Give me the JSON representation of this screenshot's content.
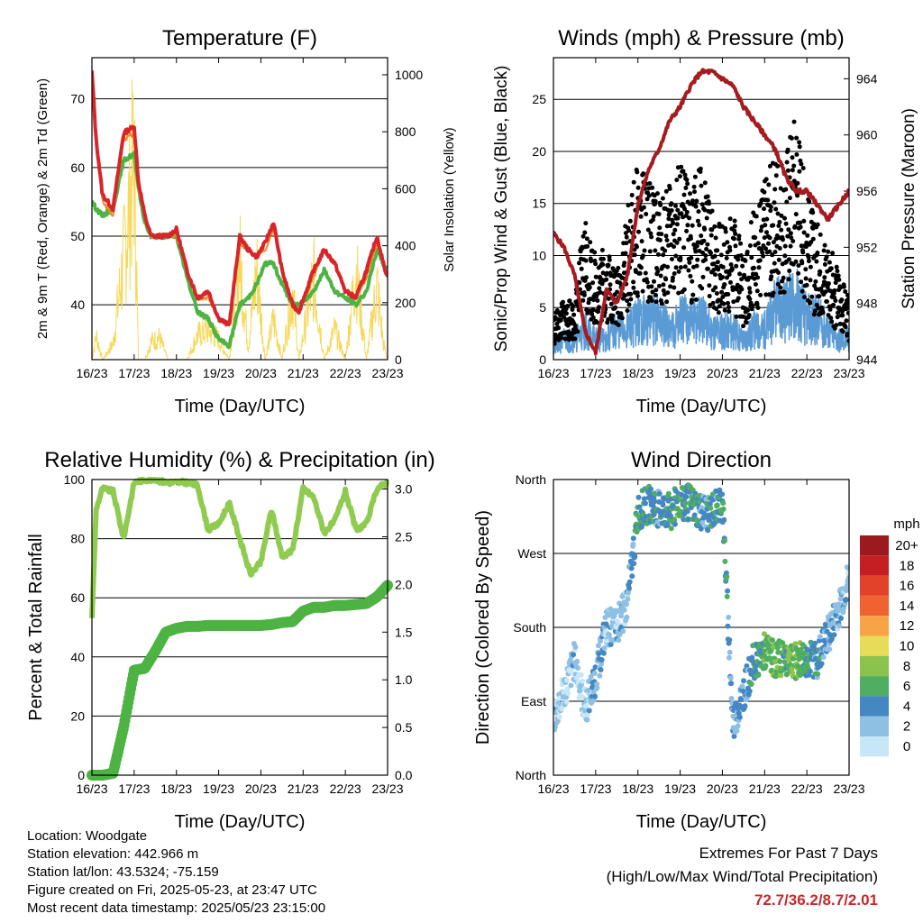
{
  "x_ticks": [
    "16/23",
    "17/23",
    "18/23",
    "19/23",
    "20/23",
    "21/23",
    "22/23",
    "23/23"
  ],
  "colors": {
    "temp2m": "#d7262b",
    "temp9m": "#f08a24",
    "dewpoint": "#4db342",
    "solar": "#f6d85a",
    "wind": "#5b9bd5",
    "gust": "#000000",
    "pressure": "#a51b1f",
    "rh": "#8fcb4f",
    "precip": "#4db342"
  },
  "chart_data": [
    {
      "type": "line",
      "title": "Temperature (F)",
      "xlabel": "Time (Day/UTC)",
      "ylabel": "2m & 9m T (Red, Orange) & 2m Td (Green)",
      "ylabel_right": "Solar Insolation (Yellow)",
      "ylim": [
        32,
        76
      ],
      "ylim_right": [
        0,
        1060
      ],
      "yticks": [
        40,
        50,
        60,
        70
      ],
      "yticks_right": [
        0,
        200,
        400,
        600,
        800,
        1000
      ],
      "grid": true,
      "x": [
        0,
        0.1,
        0.25,
        0.5,
        0.75,
        1.0,
        1.1,
        1.25,
        1.4,
        1.6,
        1.8,
        2.0,
        2.25,
        2.5,
        2.75,
        3.0,
        3.25,
        3.5,
        3.7,
        3.9,
        4.1,
        4.3,
        4.5,
        4.75,
        4.9,
        5.25,
        5.5,
        5.75,
        6.0,
        6.25,
        6.5,
        6.75,
        6.9,
        7.0
      ],
      "series": [
        {
          "name": "2m T",
          "values": [
            74,
            64,
            56,
            54,
            65,
            66,
            58,
            53,
            50,
            50,
            50,
            51,
            45,
            41,
            42,
            38,
            37,
            50,
            48,
            47,
            49,
            52,
            45,
            40,
            39,
            45,
            48,
            46,
            42,
            41,
            45,
            50,
            46,
            44
          ]
        },
        {
          "name": "9m T",
          "values": [
            73,
            63,
            55,
            53,
            64,
            65,
            57,
            53,
            50,
            50,
            50,
            50,
            45,
            41,
            41,
            38,
            37,
            49,
            48,
            47,
            48,
            51,
            45,
            40,
            39,
            44,
            48,
            46,
            42,
            41,
            44,
            49,
            46,
            44
          ]
        },
        {
          "name": "2m Td",
          "values": [
            55,
            54,
            53,
            54,
            61,
            62,
            57,
            52,
            50,
            50,
            50,
            50,
            44,
            39,
            38,
            35,
            34,
            40,
            41,
            43,
            46,
            46,
            43,
            40,
            40,
            42,
            45,
            42,
            41,
            40,
            42,
            48,
            46,
            45
          ]
        },
        {
          "name": "Solar Insolation",
          "axis": "right",
          "values": [
            0,
            120,
            0,
            80,
            500,
            1000,
            0,
            0,
            90,
            110,
            0,
            0,
            0,
            120,
            150,
            100,
            0,
            500,
            60,
            450,
            0,
            200,
            0,
            350,
            0,
            410,
            0,
            150,
            0,
            450,
            0,
            370,
            80,
            0
          ]
        }
      ]
    },
    {
      "type": "scatter",
      "title": "Winds (mph) & Pressure (mb)",
      "xlabel": "Time (Day/UTC)",
      "ylabel": "Sonic/Prop Wind & Gust (Blue, Black)",
      "ylabel_right": "Station Pressure (Maroon)",
      "ylim": [
        0,
        29
      ],
      "ylim_right": [
        944,
        965.5
      ],
      "yticks": [
        0,
        5,
        10,
        15,
        20,
        25
      ],
      "yticks_right": [
        944,
        948,
        952,
        956,
        960,
        964
      ],
      "grid": true,
      "x": [
        0,
        0.25,
        0.5,
        0.75,
        1.0,
        1.25,
        1.5,
        1.75,
        2.0,
        2.25,
        2.5,
        2.75,
        3.0,
        3.25,
        3.5,
        3.75,
        4.0,
        4.25,
        4.5,
        4.75,
        5.0,
        5.25,
        5.5,
        5.75,
        6.0,
        6.25,
        6.5,
        6.75,
        7.0
      ],
      "series": [
        {
          "name": "Wind",
          "values": [
            1,
            2,
            2,
            3,
            2,
            2,
            3,
            3,
            4,
            4,
            4,
            3,
            4,
            4,
            4,
            3,
            3,
            3,
            2,
            3,
            3,
            5,
            5,
            6,
            4,
            4,
            3,
            2,
            2
          ]
        },
        {
          "name": "Gust",
          "values": [
            3,
            4,
            4,
            10,
            7,
            8,
            6,
            10,
            13,
            12,
            11,
            12,
            13,
            12,
            13,
            10,
            9,
            10,
            7,
            10,
            12,
            14,
            14,
            17,
            11,
            9,
            8,
            6,
            4
          ]
        },
        {
          "name": "Station Pressure",
          "axis": "right",
          "values": [
            953,
            952,
            950,
            946,
            944.5,
            949,
            948,
            950,
            955,
            957.5,
            959,
            961,
            962,
            963.5,
            964.5,
            964.5,
            964,
            963.5,
            962,
            961,
            960,
            959,
            957,
            956,
            956,
            955,
            954,
            955,
            956
          ]
        }
      ]
    },
    {
      "type": "line",
      "title": "Relative Humidity (%) & Precipitation (in)",
      "xlabel": "Time (Day/UTC)",
      "ylabel": "Percent & Total Rainfall",
      "ylim": [
        0,
        100
      ],
      "ylim_right": [
        0,
        3.1
      ],
      "yticks": [
        0,
        20,
        40,
        60,
        80,
        100
      ],
      "yticks_right": [
        0.0,
        0.5,
        1.0,
        1.5,
        2.0,
        2.5,
        3.0
      ],
      "grid": true,
      "x": [
        0,
        0.1,
        0.25,
        0.5,
        0.75,
        1.0,
        1.25,
        1.5,
        1.75,
        2.0,
        2.25,
        2.5,
        2.75,
        3.0,
        3.25,
        3.5,
        3.75,
        4.0,
        4.25,
        4.5,
        4.75,
        5.0,
        5.25,
        5.5,
        5.75,
        6.0,
        6.25,
        6.5,
        6.75,
        7.0
      ],
      "series": [
        {
          "name": "RH",
          "values": [
            53,
            90,
            97,
            96,
            80,
            99,
            100,
            100,
            99,
            99,
            99,
            98,
            83,
            85,
            92,
            80,
            68,
            72,
            90,
            74,
            76,
            97,
            94,
            82,
            86,
            96,
            83,
            85,
            97,
            99
          ]
        },
        {
          "name": "Total Rainfall",
          "axis": "right",
          "values": [
            0,
            0,
            0,
            0.02,
            0.5,
            1.1,
            1.12,
            1.3,
            1.5,
            1.54,
            1.56,
            1.56,
            1.57,
            1.57,
            1.57,
            1.57,
            1.57,
            1.57,
            1.58,
            1.6,
            1.61,
            1.72,
            1.76,
            1.76,
            1.78,
            1.78,
            1.79,
            1.8,
            1.87,
            1.99
          ]
        }
      ]
    },
    {
      "type": "scatter",
      "title": "Wind Direction",
      "xlabel": "Time (Day/UTC)",
      "ylabel": "Direction (Colored By Speed)",
      "ylim": [
        0,
        360
      ],
      "yticks": [
        "North",
        "East",
        "South",
        "West",
        "North"
      ],
      "grid": true,
      "colorbar_title": "mph",
      "colorbar_labels": [
        "20+",
        "18",
        "16",
        "14",
        "12",
        "10",
        "8",
        "6",
        "4",
        "2",
        "0"
      ],
      "colorbar_colors": [
        "#9c1a1e",
        "#c51f24",
        "#e2412a",
        "#f0622f",
        "#f8a346",
        "#e6dc57",
        "#8cc34d",
        "#4fae60",
        "#4487c2",
        "#8ec0e4",
        "#c7e6f6"
      ],
      "x": [
        0,
        0.25,
        0.5,
        0.75,
        1.0,
        1.25,
        1.5,
        1.75,
        2.0,
        2.25,
        2.5,
        2.75,
        3.0,
        3.25,
        3.5,
        3.75,
        4.0,
        4.25,
        4.5,
        4.75,
        5.0,
        5.25,
        5.5,
        5.75,
        6.0,
        6.25,
        6.5,
        6.75,
        7.0
      ],
      "series": [
        {
          "name": "Direction",
          "values": [
            70,
            100,
            140,
            80,
            120,
            180,
            180,
            210,
            320,
            330,
            325,
            320,
            335,
            330,
            320,
            320,
            335,
            60,
            100,
            140,
            150,
            140,
            145,
            140,
            140,
            140,
            170,
            200,
            240
          ]
        },
        {
          "name": "Speed",
          "values": [
            2,
            1,
            2,
            1,
            3,
            2,
            2,
            2,
            5,
            5,
            4,
            5,
            6,
            5,
            4,
            4,
            5,
            3,
            3,
            5,
            6,
            7,
            6,
            7,
            5,
            4,
            3,
            2,
            2
          ]
        }
      ]
    }
  ],
  "station": {
    "location": "Location: Woodgate",
    "elevation": "Station elevation: 442.966 m",
    "latlon": "Station lat/lon: 43.5324; -75.159",
    "created": "Figure created on Fri, 2025-05-23, at 23:47 UTC",
    "timestamp": "Most recent data timestamp: 2025/05/23 23:15:00"
  },
  "extremes": {
    "title": "Extremes For Past 7 Days",
    "subtitle": "(High/Low/Max Wind/Total Precipitation)",
    "values": "72.7/36.2/8.7/2.01"
  }
}
